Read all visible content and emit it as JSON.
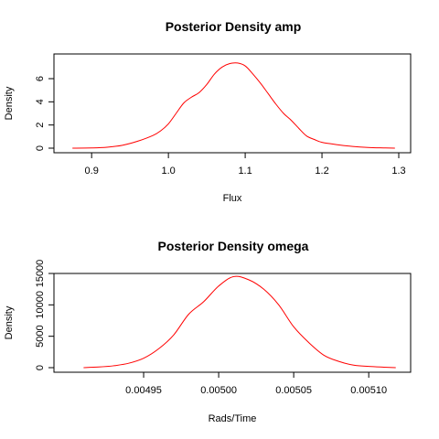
{
  "chart_data": [
    {
      "type": "line",
      "title": "Posterior Density amp",
      "xlabel": "Flux",
      "ylabel": "Density",
      "xlim": [
        0.87,
        1.3
      ],
      "ylim": [
        0,
        7.5
      ],
      "xticks": [
        0.9,
        1.0,
        1.1,
        1.2,
        1.3
      ],
      "xtick_labels": [
        "0.9",
        "1.0",
        "1.1",
        "1.2",
        "1.3"
      ],
      "yticks": [
        0,
        2,
        4,
        6
      ],
      "ytick_labels": [
        "0",
        "2",
        "4",
        "6"
      ],
      "grid": false,
      "color": "#ff0000",
      "series": [
        {
          "x": [
            0.875,
            0.9,
            0.92,
            0.94,
            0.96,
            0.98,
            0.99,
            1.0,
            1.01,
            1.02,
            1.03,
            1.04,
            1.05,
            1.06,
            1.07,
            1.08,
            1.09,
            1.1,
            1.11,
            1.12,
            1.13,
            1.14,
            1.15,
            1.16,
            1.17,
            1.18,
            1.19,
            1.2,
            1.22,
            1.24,
            1.26,
            1.28,
            1.295
          ],
          "y": [
            0.0,
            0.02,
            0.08,
            0.25,
            0.6,
            1.1,
            1.5,
            2.1,
            3.0,
            3.9,
            4.4,
            4.8,
            5.5,
            6.4,
            7.0,
            7.3,
            7.35,
            7.1,
            6.4,
            5.6,
            4.7,
            3.8,
            3.0,
            2.4,
            1.7,
            1.05,
            0.75,
            0.5,
            0.3,
            0.15,
            0.06,
            0.02,
            0.0
          ]
        }
      ]
    },
    {
      "type": "line",
      "title": "Posterior Density omega",
      "xlabel": "Rads/Time",
      "ylabel": "Density",
      "xlim": [
        0.0049,
        0.00512
      ],
      "ylim": [
        0,
        15000
      ],
      "xticks": [
        0.00495,
        0.005,
        0.00505,
        0.0051
      ],
      "xtick_labels": [
        "0.00495",
        "0.00500",
        "0.00505",
        "0.00510"
      ],
      "yticks": [
        0,
        5000,
        10000,
        15000
      ],
      "ytick_labels": [
        "0",
        "5000",
        "10000",
        "15000"
      ],
      "grid": false,
      "color": "#ff0000",
      "series": [
        {
          "x": [
            0.00491,
            0.00492,
            0.00493,
            0.00494,
            0.00495,
            0.00496,
            0.00497,
            0.00498,
            0.00499,
            0.005,
            0.00501,
            0.00502,
            0.00503,
            0.00504,
            0.00505,
            0.00506,
            0.00507,
            0.00508,
            0.00509,
            0.0051,
            0.00511,
            0.005118
          ],
          "y": [
            0,
            100,
            300,
            700,
            1500,
            3000,
            5200,
            8500,
            10500,
            13000,
            14500,
            14000,
            12500,
            10000,
            6500,
            4000,
            2000,
            1000,
            400,
            200,
            80,
            0
          ]
        }
      ]
    }
  ]
}
